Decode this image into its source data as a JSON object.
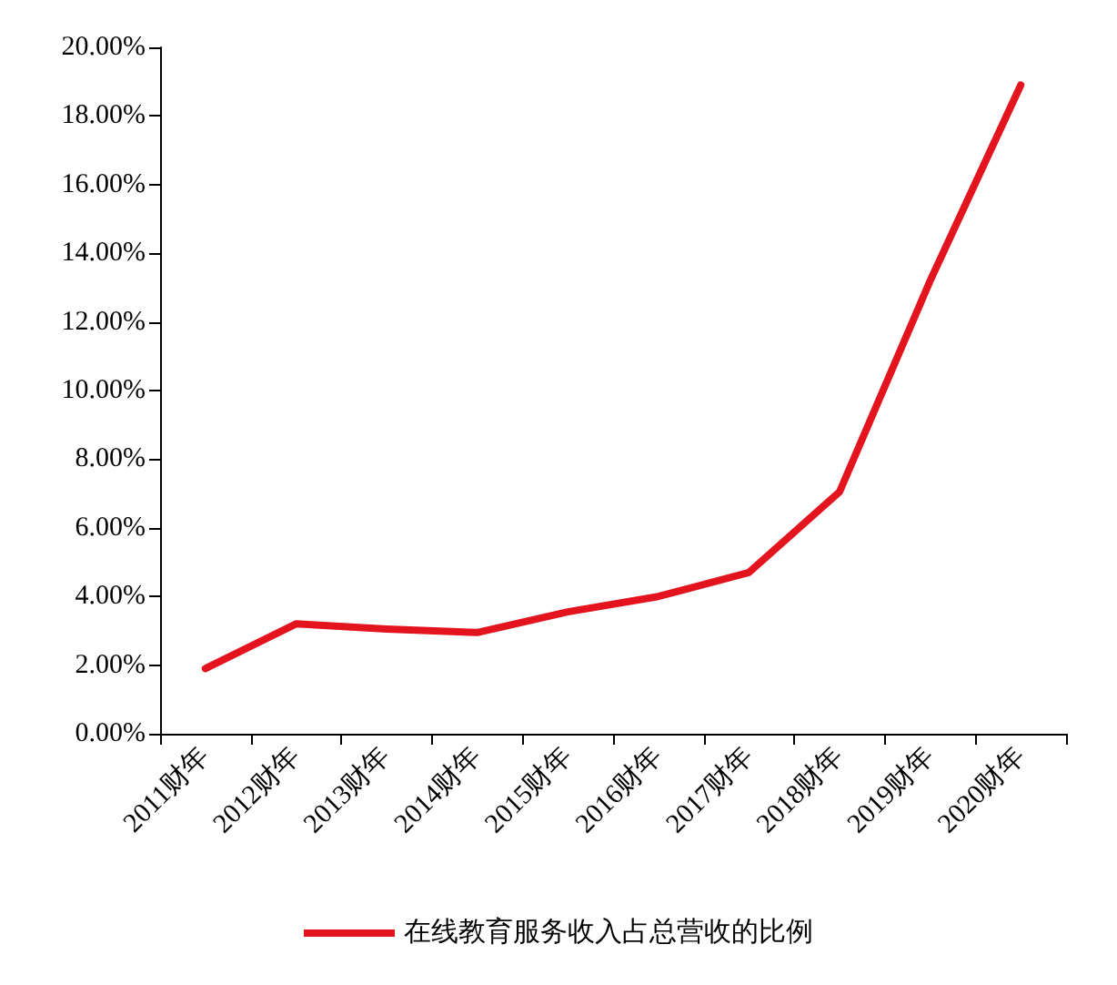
{
  "chart_data": {
    "type": "line",
    "categories": [
      "2011财年",
      "2012财年",
      "2013财年",
      "2014财年",
      "2015财年",
      "2016财年",
      "2017财年",
      "2018财年",
      "2019财年",
      "2020财年"
    ],
    "series": [
      {
        "name": "在线教育服务收入占总营收的比例",
        "color": "#e3141e",
        "values": [
          1.9,
          3.2,
          3.05,
          2.95,
          3.55,
          4.0,
          4.7,
          7.05,
          13.2,
          18.9
        ]
      }
    ],
    "ylim": [
      0,
      20
    ],
    "yticks": [
      {
        "value": 0,
        "label": "0.00%"
      },
      {
        "value": 2,
        "label": "2.00%"
      },
      {
        "value": 4,
        "label": "4.00%"
      },
      {
        "value": 6,
        "label": "6.00%"
      },
      {
        "value": 8,
        "label": "8.00%"
      },
      {
        "value": 10,
        "label": "10.00%"
      },
      {
        "value": 12,
        "label": "12.00%"
      },
      {
        "value": 14,
        "label": "14.00%"
      },
      {
        "value": 16,
        "label": "16.00%"
      },
      {
        "value": 18,
        "label": "18.00%"
      },
      {
        "value": 20,
        "label": "20.00%"
      }
    ],
    "grid": false,
    "legend": "bottom",
    "marker": "none",
    "line_style": "solid"
  }
}
